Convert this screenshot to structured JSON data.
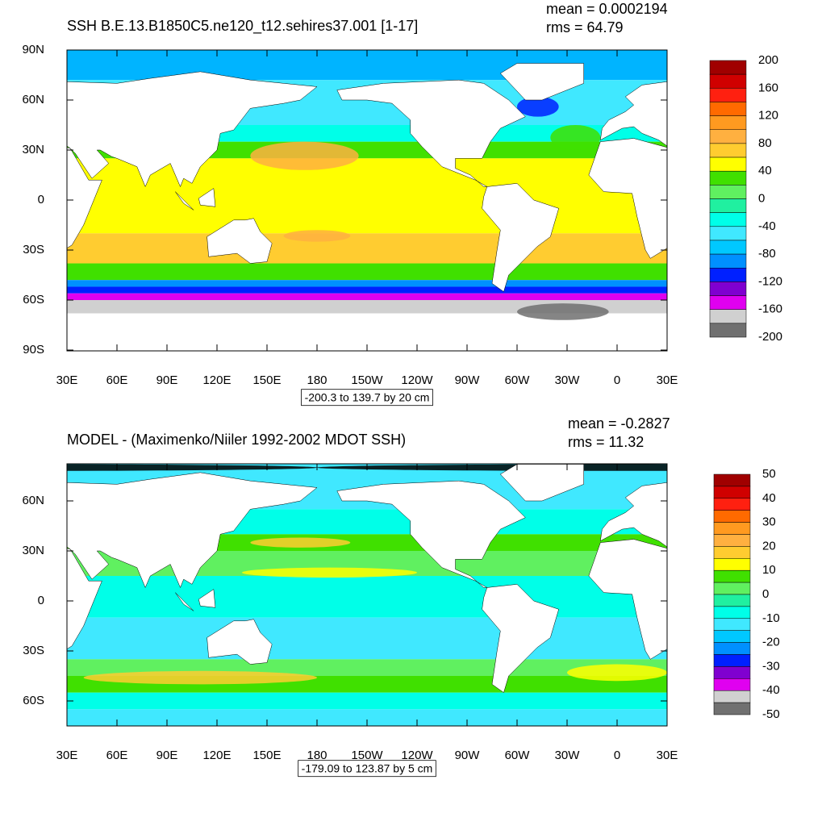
{
  "panels": [
    {
      "title": "SSH B.E.13.B1850C5.ne120_t12.sehires37.001 [1-17]",
      "stats": [
        "mean = 0.0002194",
        "rms = 64.79"
      ],
      "lat_labels": [
        "90N",
        "60N",
        "30N",
        "0",
        "30S",
        "60S",
        "90S"
      ],
      "lon_labels": [
        "30E",
        "60E",
        "90E",
        "120E",
        "150E",
        "180",
        "150W",
        "120W",
        "90W",
        "60W",
        "30W",
        "0",
        "30E"
      ],
      "colorbar": {
        "labels": [
          "200",
          "160",
          "120",
          "80",
          "40",
          "0",
          "-40",
          "-80",
          "-120",
          "-160",
          "-200"
        ],
        "colors": [
          "#a00000",
          "#d00000",
          "#ff2010",
          "#ff6a00",
          "#ff9a20",
          "#ffb040",
          "#ffcc30",
          "#ffff00",
          "#40e000",
          "#60f060",
          "#20f0a0",
          "#00ffe8",
          "#40e8ff",
          "#00c8ff",
          "#0090ff",
          "#0020ff",
          "#8000d0",
          "#e000f0",
          "#d0d0d0",
          "#707070"
        ]
      },
      "range_note": "-200.3 to 139.7 by 20 cm"
    },
    {
      "title": "MODEL - (Maximenko/Niiler 1992-2002 MDOT SSH)",
      "stats": [
        "mean = -0.2827",
        "rms = 11.32"
      ],
      "lat_labels": [
        "60N",
        "30N",
        "0",
        "30S",
        "60S"
      ],
      "lon_labels": [
        "30E",
        "60E",
        "90E",
        "120E",
        "150E",
        "180",
        "150W",
        "120W",
        "90W",
        "60W",
        "30W",
        "0",
        "30E"
      ],
      "colorbar": {
        "labels": [
          "50",
          "40",
          "30",
          "20",
          "10",
          "0",
          "-10",
          "-20",
          "-30",
          "-40",
          "-50"
        ],
        "colors": [
          "#a00000",
          "#d00000",
          "#ff2010",
          "#ff6a00",
          "#ff9a20",
          "#ffb040",
          "#ffcc30",
          "#ffff00",
          "#40e000",
          "#60f060",
          "#20f0a0",
          "#00ffe8",
          "#40e8ff",
          "#00c8ff",
          "#0090ff",
          "#0020ff",
          "#8000d0",
          "#e000f0",
          "#d0d0d0",
          "#707070"
        ]
      },
      "range_note": "-179.09 to 123.87 by 5 cm"
    }
  ]
}
